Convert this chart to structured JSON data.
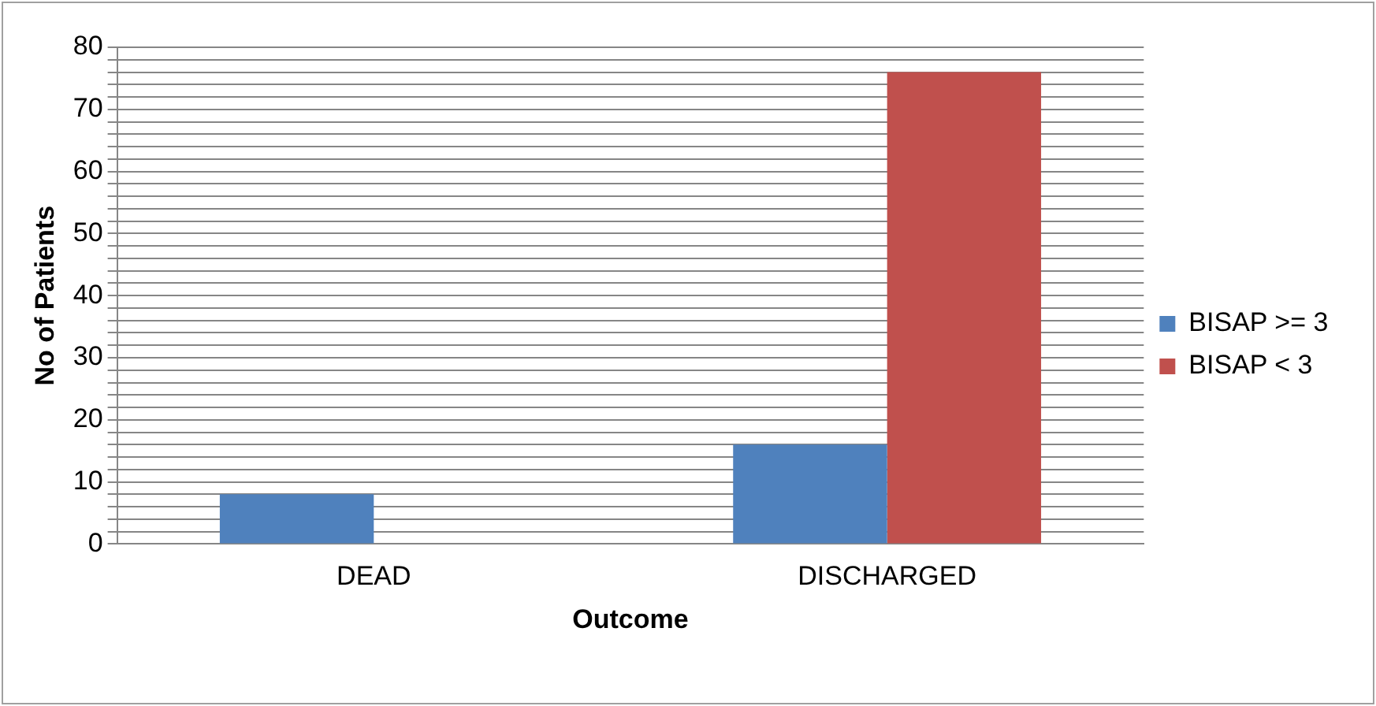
{
  "chart_data": {
    "type": "bar",
    "xlabel": "Outcome",
    "ylabel": "No of Patients",
    "categories": [
      "DEAD",
      "DISCHARGED"
    ],
    "series": [
      {
        "name": "BISAP >= 3",
        "color": "#4f81bd",
        "values": [
          8,
          16
        ]
      },
      {
        "name": "BISAP < 3",
        "color": "#c0504d",
        "values": [
          0,
          76
        ]
      }
    ],
    "ylim": [
      0,
      80
    ],
    "yticks": [
      0,
      {
        "value": 2,
        "label": null
      },
      {
        "value": 4,
        "label": null
      },
      {
        "value": 6,
        "label": null
      },
      {
        "value": 8,
        "label": null
      },
      10,
      {
        "value": 12,
        "label": null
      },
      {
        "value": 14,
        "label": null
      },
      {
        "value": 16,
        "label": null
      },
      {
        "value": 18,
        "label": null
      },
      20,
      {
        "value": 22,
        "label": null
      },
      {
        "value": 24,
        "label": null
      },
      {
        "value": 26,
        "label": null
      },
      {
        "value": 28,
        "label": null
      },
      30,
      {
        "value": 32,
        "label": null
      },
      {
        "value": 34,
        "label": null
      },
      {
        "value": 36,
        "label": null
      },
      {
        "value": 38,
        "label": null
      },
      40,
      {
        "value": 42,
        "label": null
      },
      {
        "value": 44,
        "label": null
      },
      {
        "value": 46,
        "label": null
      },
      {
        "value": 48,
        "label": null
      },
      50,
      {
        "value": 52,
        "label": null
      },
      {
        "value": 54,
        "label": null
      },
      {
        "value": 56,
        "label": null
      },
      {
        "value": 58,
        "label": null
      },
      60,
      {
        "value": 62,
        "label": null
      },
      {
        "value": 64,
        "label": null
      },
      {
        "value": 66,
        "label": null
      },
      {
        "value": 68,
        "label": null
      },
      70,
      {
        "value": 72,
        "label": null
      },
      {
        "value": 74,
        "label": null
      },
      {
        "value": 76,
        "label": null
      },
      {
        "value": 78,
        "label": null
      },
      80
    ],
    "grid": "y",
    "legend": "right"
  }
}
